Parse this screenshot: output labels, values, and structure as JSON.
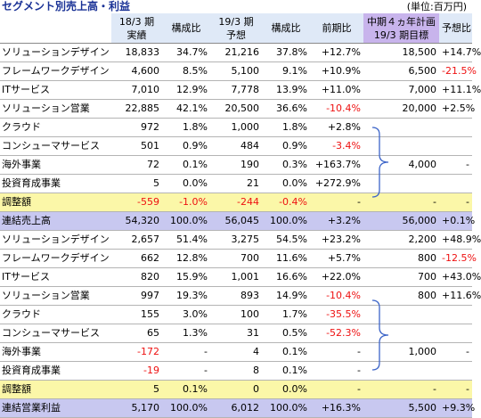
{
  "title": "セグメント別売上高・利益",
  "unit": "(単位:百万円)",
  "headers": {
    "c1": [
      "18/3 期",
      "実績"
    ],
    "c2": "構成比",
    "c3": [
      "19/3 期",
      "予想"
    ],
    "c4": "構成比",
    "c5": "前期比",
    "c6": [
      "中期４ヵ年計画",
      "19/3 期目標"
    ],
    "c7": "予想比"
  },
  "sales_rows": [
    {
      "label": "ソリューションデザイン",
      "a": "18,833",
      "b": "34.7%",
      "c": "21,216",
      "d": "37.8%",
      "e": "+12.7%",
      "f": "18,500",
      "g": "+14.7%"
    },
    {
      "label": "フレームワークデザイン",
      "a": "4,600",
      "b": "8.5%",
      "c": "5,100",
      "d": "9.1%",
      "e": "+10.9%",
      "f": "6,500",
      "g": "-21.5%"
    },
    {
      "label": "ITサービス",
      "a": "7,010",
      "b": "12.9%",
      "c": "7,778",
      "d": "13.9%",
      "e": "+11.0%",
      "f": "7,000",
      "g": "+11.1%"
    },
    {
      "label": "ソリューション営業",
      "a": "22,885",
      "b": "42.1%",
      "c": "20,500",
      "d": "36.6%",
      "e": "-10.4%",
      "f": "20,000",
      "g": "+2.5%"
    },
    {
      "label": "クラウド",
      "a": "972",
      "b": "1.8%",
      "c": "1,000",
      "d": "1.8%",
      "e": "+2.8%",
      "f": "",
      "g": ""
    },
    {
      "label": "コンシューマサービス",
      "a": "501",
      "b": "0.9%",
      "c": "484",
      "d": "0.9%",
      "e": "-3.4%",
      "f": "",
      "g": ""
    },
    {
      "label": "海外事業",
      "a": "72",
      "b": "0.1%",
      "c": "190",
      "d": "0.3%",
      "e": "+163.7%",
      "f": "4,000",
      "g": "-"
    },
    {
      "label": "投資育成事業",
      "a": "5",
      "b": "0.0%",
      "c": "21",
      "d": "0.0%",
      "e": "+272.9%",
      "f": "",
      "g": ""
    },
    {
      "label": "調整額",
      "a": "-559",
      "b": "-1.0%",
      "c": "-244",
      "d": "-0.4%",
      "e": "-",
      "f": "-",
      "g": "-"
    },
    {
      "label": "連結売上高",
      "a": "54,320",
      "b": "100.0%",
      "c": "56,045",
      "d": "100.0%",
      "e": "+3.2%",
      "f": "56,000",
      "g": "+0.1%"
    }
  ],
  "profit_rows": [
    {
      "label": "ソリューションデザイン",
      "a": "2,657",
      "b": "51.4%",
      "c": "3,275",
      "d": "54.5%",
      "e": "+23.2%",
      "f": "2,200",
      "g": "+48.9%"
    },
    {
      "label": "フレームワークデザイン",
      "a": "662",
      "b": "12.8%",
      "c": "700",
      "d": "11.6%",
      "e": "+5.7%",
      "f": "800",
      "g": "-12.5%"
    },
    {
      "label": "ITサービス",
      "a": "820",
      "b": "15.9%",
      "c": "1,001",
      "d": "16.6%",
      "e": "+22.0%",
      "f": "700",
      "g": "+43.0%"
    },
    {
      "label": "ソリューション営業",
      "a": "997",
      "b": "19.3%",
      "c": "893",
      "d": "14.9%",
      "e": "-10.4%",
      "f": "800",
      "g": "+11.6%"
    },
    {
      "label": "クラウド",
      "a": "155",
      "b": "3.0%",
      "c": "100",
      "d": "1.7%",
      "e": "-35.5%",
      "f": "",
      "g": ""
    },
    {
      "label": "コンシューマサービス",
      "a": "65",
      "b": "1.3%",
      "c": "31",
      "d": "0.5%",
      "e": "-52.3%",
      "f": "",
      "g": ""
    },
    {
      "label": "海外事業",
      "a": "-172",
      "b": "-",
      "c": "4",
      "d": "0.1%",
      "e": "-",
      "f": "1,000",
      "g": "-"
    },
    {
      "label": "投資育成事業",
      "a": "-19",
      "b": "-",
      "c": "8",
      "d": "0.1%",
      "e": "-",
      "f": "",
      "g": ""
    },
    {
      "label": "調整額",
      "a": "5",
      "b": "0.1%",
      "c": "0",
      "d": "0.0%",
      "e": "-",
      "f": "-",
      "g": "-"
    },
    {
      "label": "連結営業利益",
      "a": "5,170",
      "b": "100.0%",
      "c": "6,012",
      "d": "100.0%",
      "e": "+16.3%",
      "f": "5,500",
      "g": "+9.3%"
    }
  ],
  "colors": {
    "title": "#1a3296",
    "header": "#dfe9f7",
    "plan_header": "#c8b4ec",
    "adjust_row": "#fbf7a8",
    "total_row": "#c8c8f0",
    "negative": "#ee1111",
    "brace": "#3c64c8"
  }
}
